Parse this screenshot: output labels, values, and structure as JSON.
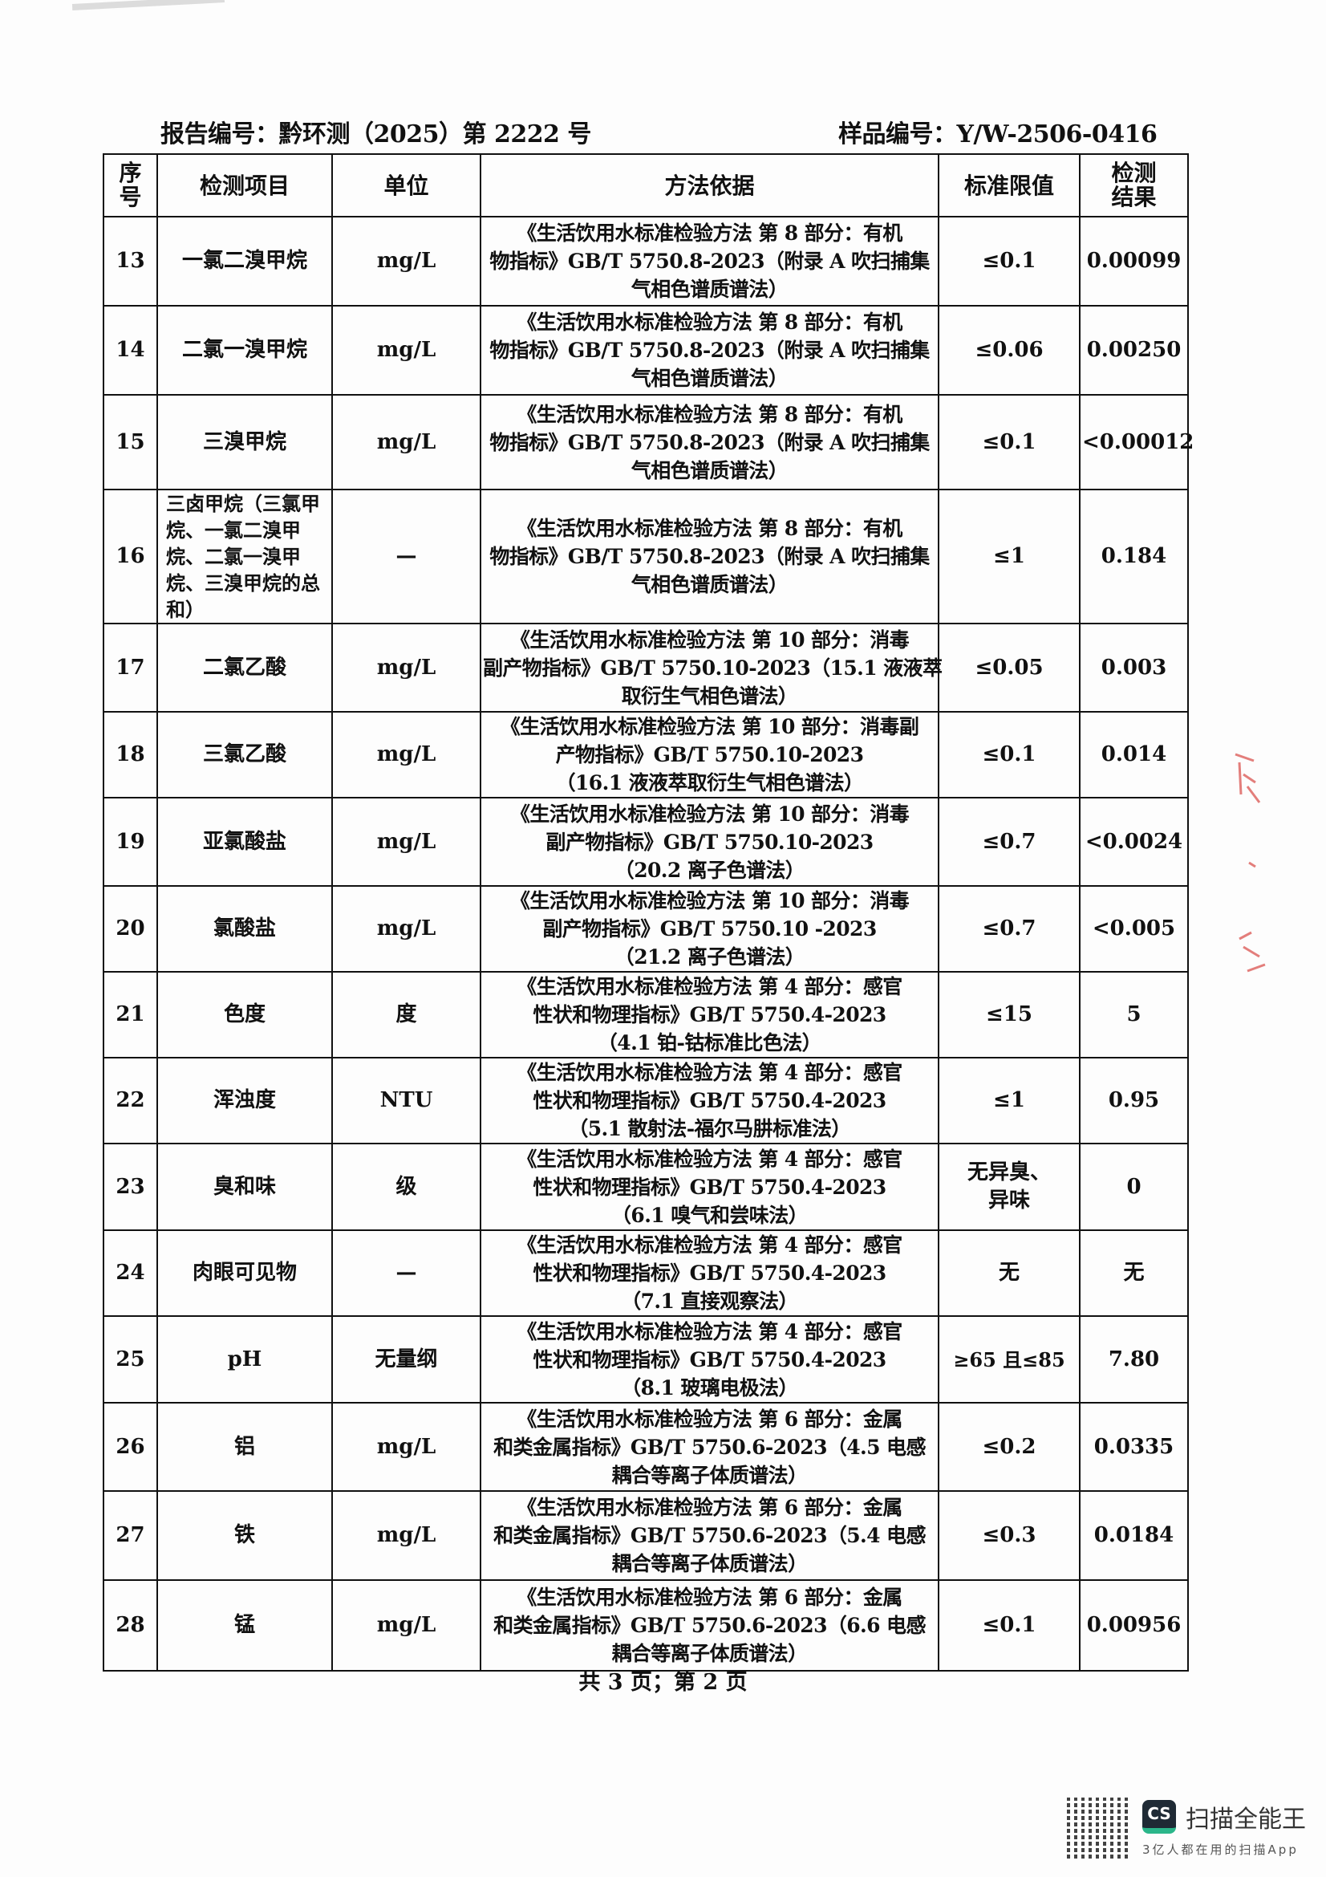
{
  "header": {
    "report_no": "报告编号：黔环测（2025）第 2222 号",
    "sample_no": "样品编号：Y/W-2506-0416"
  },
  "columns": [
    "序号",
    "检测项目",
    "单位",
    "方法依据",
    "标准限值",
    "检测结果"
  ],
  "rows": [
    {
      "no": "13",
      "item": "一氯二溴甲烷",
      "unit": "mg/L",
      "method": [
        "《生活饮用水标准检验方法 第 8 部分：有机",
        "物指标》GB/T 5750.8-2023（附录 A 吹扫捕集",
        "气相色谱质谱法）"
      ],
      "limit": "≤0.1",
      "result": "0.00099"
    },
    {
      "no": "14",
      "item": "二氯一溴甲烷",
      "unit": "mg/L",
      "method": [
        "《生活饮用水标准检验方法 第 8 部分：有机",
        "物指标》GB/T 5750.8-2023（附录 A 吹扫捕集",
        "气相色谱质谱法）"
      ],
      "limit": "≤0.06",
      "result": "0.00250"
    },
    {
      "no": "15",
      "item": "三溴甲烷",
      "unit": "mg/L",
      "method": [
        "《生活饮用水标准检验方法 第 8 部分：有机",
        "物指标》GB/T 5750.8-2023（附录 A 吹扫捕集",
        "气相色谱质谱法）"
      ],
      "limit": "≤0.1",
      "result": "<0.00012"
    },
    {
      "no": "16",
      "item": "三卤甲烷（三氯甲烷、一氯二溴甲烷、二氯一溴甲烷、三溴甲烷的总和）",
      "unit": "—",
      "method": [
        "《生活饮用水标准检验方法 第 8 部分：有机",
        "物指标》GB/T 5750.8-2023（附录 A 吹扫捕集",
        "气相色谱质谱法）"
      ],
      "limit": "≤1",
      "result": "0.184"
    },
    {
      "no": "17",
      "item": "二氯乙酸",
      "unit": "mg/L",
      "method": [
        "《生活饮用水标准检验方法 第 10 部分：消毒",
        "副产物指标》GB/T 5750.10-2023（15.1 液液萃",
        "取衍生气相色谱法）"
      ],
      "limit": "≤0.05",
      "result": "0.003"
    },
    {
      "no": "18",
      "item": "三氯乙酸",
      "unit": "mg/L",
      "method": [
        "《生活饮用水标准检验方法 第 10 部分：消毒副",
        "产物指标》GB/T 5750.10-2023",
        "（16.1 液液萃取衍生气相色谱法）"
      ],
      "limit": "≤0.1",
      "result": "0.014"
    },
    {
      "no": "19",
      "item": "亚氯酸盐",
      "unit": "mg/L",
      "method": [
        "《生活饮用水标准检验方法 第 10 部分：消毒",
        "副产物指标》GB/T 5750.10-2023",
        "（20.2 离子色谱法）"
      ],
      "limit": "≤0.7",
      "result": "<0.0024"
    },
    {
      "no": "20",
      "item": "氯酸盐",
      "unit": "mg/L",
      "method": [
        "《生活饮用水标准检验方法 第 10 部分：消毒",
        "副产物指标》GB/T 5750.10 -2023",
        "（21.2 离子色谱法）"
      ],
      "limit": "≤0.7",
      "result": "<0.005"
    },
    {
      "no": "21",
      "item": "色度",
      "unit": "度",
      "method": [
        "《生活饮用水标准检验方法 第 4 部分：感官",
        "性状和物理指标》GB/T 5750.4-2023",
        "（4.1 铂-钴标准比色法）"
      ],
      "limit": "≤15",
      "result": "5"
    },
    {
      "no": "22",
      "item": "浑浊度",
      "unit": "NTU",
      "method": [
        "《生活饮用水标准检验方法 第 4 部分：感官",
        "性状和物理指标》GB/T 5750.4-2023",
        "（5.1 散射法-福尔马肼标准法）"
      ],
      "limit": "≤1",
      "result": "0.95"
    },
    {
      "no": "23",
      "item": "臭和味",
      "unit": "级",
      "method": [
        "《生活饮用水标准检验方法 第 4 部分：感官",
        "性状和物理指标》GB/T 5750.4-2023",
        "（6.1 嗅气和尝味法）"
      ],
      "limit": "无异臭、异味",
      "result": "0"
    },
    {
      "no": "24",
      "item": "肉眼可见物",
      "unit": "—",
      "method": [
        "《生活饮用水标准检验方法 第 4 部分：感官",
        "性状和物理指标》GB/T 5750.4-2023",
        "（7.1 直接观察法）"
      ],
      "limit": "无",
      "result": "无"
    },
    {
      "no": "25",
      "item": "pH",
      "unit": "无量纲",
      "method": [
        "《生活饮用水标准检验方法 第 4 部分：感官",
        "性状和物理指标》GB/T 5750.4-2023",
        "（8.1 玻璃电极法）"
      ],
      "limit": "≥65 且≤85",
      "result": "7.80"
    },
    {
      "no": "26",
      "item": "铝",
      "unit": "mg/L",
      "method": [
        "《生活饮用水标准检验方法 第 6 部分：金属",
        "和类金属指标》GB/T 5750.6-2023（4.5 电感",
        "耦合等离子体质谱法）"
      ],
      "limit": "≤0.2",
      "result": "0.0335"
    },
    {
      "no": "27",
      "item": "铁",
      "unit": "mg/L",
      "method": [
        "《生活饮用水标准检验方法 第 6 部分：金属",
        "和类金属指标》GB/T 5750.6-2023（5.4 电感",
        "耦合等离子体质谱法）"
      ],
      "limit": "≤0.3",
      "result": "0.0184"
    },
    {
      "no": "28",
      "item": "锰",
      "unit": "mg/L",
      "method": [
        "《生活饮用水标准检验方法 第 6 部分：金属",
        "和类金属指标》GB/T 5750.6-2023（6.6 电感",
        "耦合等离子体质谱法）"
      ],
      "limit": "≤0.1",
      "result": "0.00956"
    }
  ],
  "footer": {
    "page": "共 3 页；第 2 页"
  },
  "watermark": {
    "brand": "扫描全能王",
    "logo_text": "CS",
    "slogan": "3亿人都在用的扫描App",
    "accent": "#2bb68a",
    "dark": "#1f2a35"
  },
  "stamp_color": "#d9534f"
}
